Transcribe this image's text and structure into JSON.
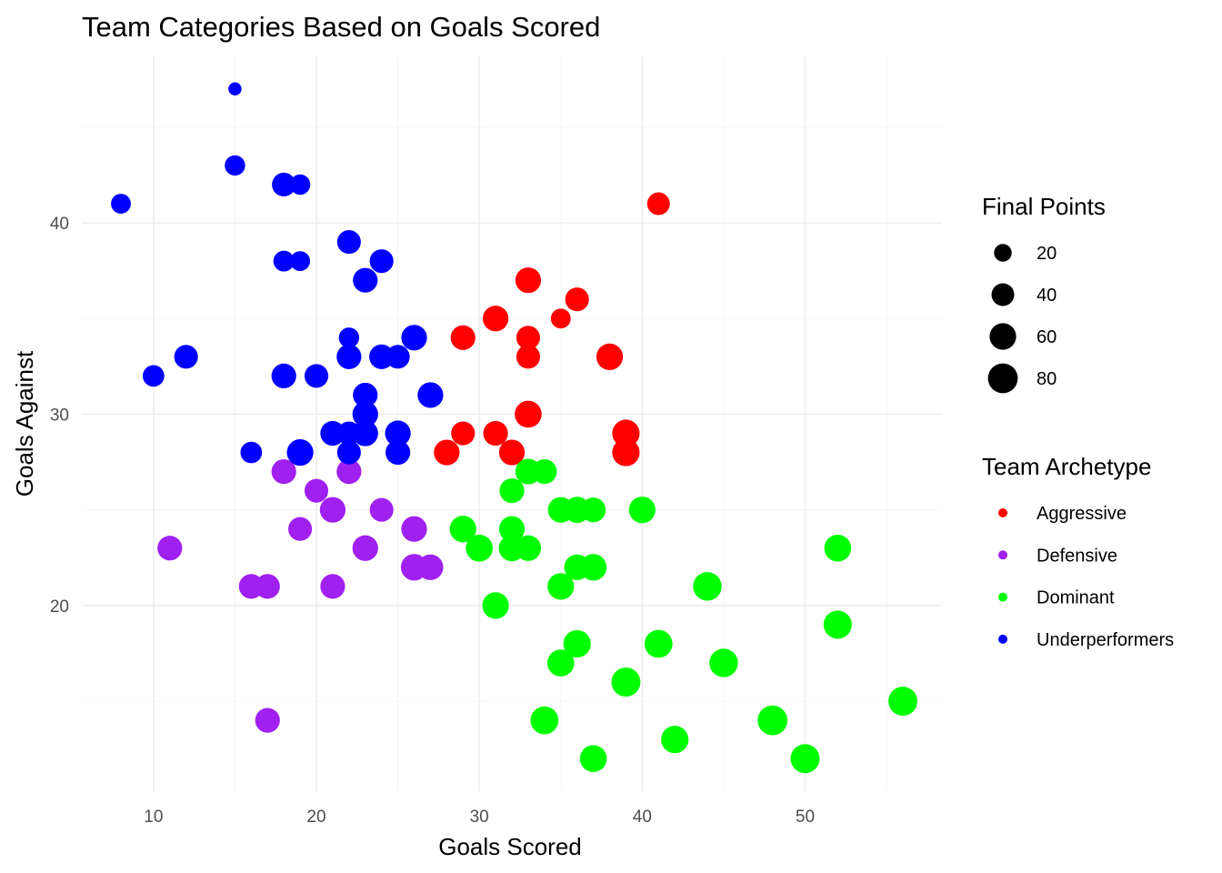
{
  "chart_data": {
    "type": "scatter",
    "title": "Team Categories Based on Goals Scored",
    "xlabel": "Goals Scored",
    "ylabel": "Goals Against",
    "xlim": [
      5.6,
      58.4
    ],
    "ylim": [
      10.3,
      48.7
    ],
    "x_ticks": [
      10,
      20,
      30,
      40,
      50
    ],
    "y_ticks": [
      20,
      30,
      40
    ],
    "grid": true,
    "legend_position": "right",
    "size_legend": {
      "title": "Final Points",
      "values": [
        20,
        40,
        60,
        80
      ]
    },
    "color_legend": {
      "title": "Team Archetype",
      "entries": [
        {
          "name": "Aggressive",
          "color": "#ff0000"
        },
        {
          "name": "Defensive",
          "color": "#a020f0"
        },
        {
          "name": "Dominant",
          "color": "#00ff00"
        },
        {
          "name": "Underperformers",
          "color": "#0000ff"
        }
      ]
    },
    "series": [
      {
        "name": "Aggressive",
        "color": "#ff0000",
        "points": [
          {
            "x": 41,
            "y": 41,
            "size": 40
          },
          {
            "x": 33,
            "y": 37,
            "size": 55
          },
          {
            "x": 36,
            "y": 36,
            "size": 45
          },
          {
            "x": 31,
            "y": 35,
            "size": 55
          },
          {
            "x": 35,
            "y": 35,
            "size": 28
          },
          {
            "x": 29,
            "y": 34,
            "size": 50
          },
          {
            "x": 33,
            "y": 34,
            "size": 45
          },
          {
            "x": 33,
            "y": 33,
            "size": 45
          },
          {
            "x": 38,
            "y": 33,
            "size": 60
          },
          {
            "x": 33,
            "y": 30,
            "size": 62
          },
          {
            "x": 39,
            "y": 29,
            "size": 65
          },
          {
            "x": 29,
            "y": 29,
            "size": 45
          },
          {
            "x": 31,
            "y": 29,
            "size": 50
          },
          {
            "x": 28,
            "y": 28,
            "size": 55
          },
          {
            "x": 32,
            "y": 28,
            "size": 55
          },
          {
            "x": 39,
            "y": 28,
            "size": 65
          }
        ]
      },
      {
        "name": "Defensive",
        "color": "#a020f0",
        "points": [
          {
            "x": 18,
            "y": 27,
            "size": 50
          },
          {
            "x": 22,
            "y": 27,
            "size": 50
          },
          {
            "x": 20,
            "y": 26,
            "size": 45
          },
          {
            "x": 21,
            "y": 25,
            "size": 55
          },
          {
            "x": 24,
            "y": 25,
            "size": 45
          },
          {
            "x": 19,
            "y": 24,
            "size": 45
          },
          {
            "x": 26,
            "y": 24,
            "size": 55
          },
          {
            "x": 11,
            "y": 23,
            "size": 50
          },
          {
            "x": 23,
            "y": 23,
            "size": 55
          },
          {
            "x": 26,
            "y": 22,
            "size": 60
          },
          {
            "x": 27,
            "y": 22,
            "size": 55
          },
          {
            "x": 16,
            "y": 21,
            "size": 50
          },
          {
            "x": 17,
            "y": 21,
            "size": 50
          },
          {
            "x": 21,
            "y": 21,
            "size": 50
          },
          {
            "x": 17,
            "y": 14,
            "size": 50
          }
        ]
      },
      {
        "name": "Dominant",
        "color": "#00ff00",
        "points": [
          {
            "x": 33,
            "y": 27,
            "size": 55
          },
          {
            "x": 34,
            "y": 27,
            "size": 50
          },
          {
            "x": 32,
            "y": 26,
            "size": 50
          },
          {
            "x": 35,
            "y": 25,
            "size": 55
          },
          {
            "x": 36,
            "y": 25,
            "size": 58
          },
          {
            "x": 37,
            "y": 25,
            "size": 50
          },
          {
            "x": 40,
            "y": 25,
            "size": 60
          },
          {
            "x": 29,
            "y": 24,
            "size": 60
          },
          {
            "x": 32,
            "y": 24,
            "size": 55
          },
          {
            "x": 30,
            "y": 23,
            "size": 62
          },
          {
            "x": 32,
            "y": 23,
            "size": 58
          },
          {
            "x": 33,
            "y": 23,
            "size": 55
          },
          {
            "x": 52,
            "y": 23,
            "size": 62
          },
          {
            "x": 36,
            "y": 22,
            "size": 55
          },
          {
            "x": 37,
            "y": 22,
            "size": 60
          },
          {
            "x": 35,
            "y": 21,
            "size": 60
          },
          {
            "x": 44,
            "y": 21,
            "size": 72
          },
          {
            "x": 31,
            "y": 20,
            "size": 60
          },
          {
            "x": 52,
            "y": 19,
            "size": 70
          },
          {
            "x": 36,
            "y": 18,
            "size": 65
          },
          {
            "x": 41,
            "y": 18,
            "size": 68
          },
          {
            "x": 35,
            "y": 17,
            "size": 62
          },
          {
            "x": 45,
            "y": 17,
            "size": 72
          },
          {
            "x": 39,
            "y": 16,
            "size": 75
          },
          {
            "x": 56,
            "y": 15,
            "size": 75
          },
          {
            "x": 34,
            "y": 14,
            "size": 68
          },
          {
            "x": 48,
            "y": 14,
            "size": 80
          },
          {
            "x": 42,
            "y": 13,
            "size": 65
          },
          {
            "x": 37,
            "y": 12,
            "size": 62
          },
          {
            "x": 50,
            "y": 12,
            "size": 75
          }
        ]
      },
      {
        "name": "Underperformers",
        "color": "#0000ff",
        "points": [
          {
            "x": 15,
            "y": 47,
            "size": 8
          },
          {
            "x": 15,
            "y": 43,
            "size": 30
          },
          {
            "x": 8,
            "y": 41,
            "size": 28
          },
          {
            "x": 18,
            "y": 42,
            "size": 45
          },
          {
            "x": 19,
            "y": 42,
            "size": 30
          },
          {
            "x": 22,
            "y": 39,
            "size": 45
          },
          {
            "x": 18,
            "y": 38,
            "size": 32
          },
          {
            "x": 19,
            "y": 38,
            "size": 28
          },
          {
            "x": 24,
            "y": 38,
            "size": 45
          },
          {
            "x": 23,
            "y": 37,
            "size": 50
          },
          {
            "x": 22,
            "y": 34,
            "size": 30
          },
          {
            "x": 26,
            "y": 34,
            "size": 55
          },
          {
            "x": 12,
            "y": 33,
            "size": 45
          },
          {
            "x": 22,
            "y": 33,
            "size": 50
          },
          {
            "x": 24,
            "y": 33,
            "size": 50
          },
          {
            "x": 25,
            "y": 33,
            "size": 45
          },
          {
            "x": 10,
            "y": 32,
            "size": 35
          },
          {
            "x": 18,
            "y": 32,
            "size": 50
          },
          {
            "x": 20,
            "y": 32,
            "size": 45
          },
          {
            "x": 23,
            "y": 31,
            "size": 50
          },
          {
            "x": 27,
            "y": 31,
            "size": 55
          },
          {
            "x": 23,
            "y": 30,
            "size": 55
          },
          {
            "x": 21,
            "y": 29,
            "size": 50
          },
          {
            "x": 22,
            "y": 29,
            "size": 45
          },
          {
            "x": 23,
            "y": 29,
            "size": 55
          },
          {
            "x": 25,
            "y": 29,
            "size": 55
          },
          {
            "x": 16,
            "y": 28,
            "size": 35
          },
          {
            "x": 19,
            "y": 28,
            "size": 60
          },
          {
            "x": 22,
            "y": 28,
            "size": 45
          },
          {
            "x": 25,
            "y": 28,
            "size": 50
          }
        ]
      }
    ]
  }
}
